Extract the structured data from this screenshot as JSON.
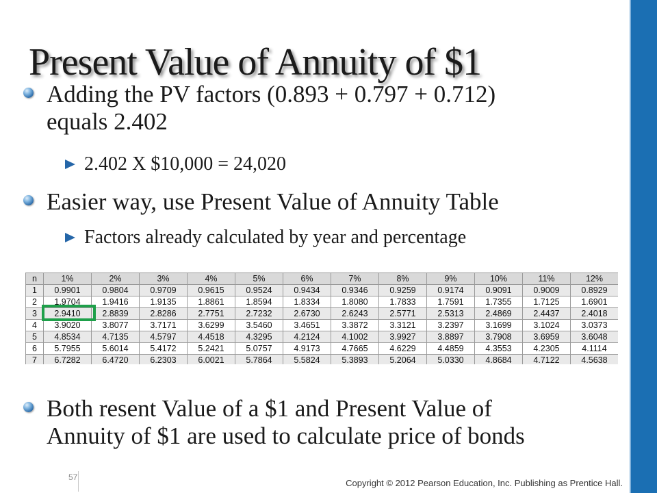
{
  "slide": {
    "title": "Present Value of Annuity of $1",
    "bullets": [
      {
        "line1": "Adding the PV factors (0.893 + 0.797 + 0.712)",
        "line2": "equals 2.402",
        "sub": [
          "2.402 X $10,000 = 24,020"
        ]
      },
      {
        "line1": "Easier way, use Present Value of Annuity Table",
        "sub": [
          "Factors already calculated by year and percentage"
        ]
      },
      {
        "line1": "Both resent Value of a $1 and Present Value of",
        "line2": "Annuity of $1 are used to calculate price of bonds"
      }
    ],
    "page_number": "57",
    "copyright": "Copyright © 2012 Pearson Education, Inc. Publishing as Prentice Hall."
  },
  "table": {
    "headers": [
      "n",
      "1%",
      "2%",
      "3%",
      "4%",
      "5%",
      "6%",
      "7%",
      "8%",
      "9%",
      "10%",
      "11%",
      "12%"
    ],
    "rows": [
      [
        "1",
        "0.9901",
        "0.9804",
        "0.9709",
        "0.9615",
        "0.9524",
        "0.9434",
        "0.9346",
        "0.9259",
        "0.9174",
        "0.9091",
        "0.9009",
        "0.8929"
      ],
      [
        "2",
        "1.9704",
        "1.9416",
        "1.9135",
        "1.8861",
        "1.8594",
        "1.8334",
        "1.8080",
        "1.7833",
        "1.7591",
        "1.7355",
        "1.7125",
        "1.6901"
      ],
      [
        "3",
        "2.9410",
        "2.8839",
        "2.8286",
        "2.7751",
        "2.7232",
        "2.6730",
        "2.6243",
        "2.5771",
        "2.5313",
        "2.4869",
        "2.4437",
        "2.4018"
      ],
      [
        "4",
        "3.9020",
        "3.8077",
        "3.7171",
        "3.6299",
        "3.5460",
        "3.4651",
        "3.3872",
        "3.3121",
        "3.2397",
        "3.1699",
        "3.1024",
        "3.0373"
      ],
      [
        "5",
        "4.8534",
        "4.7135",
        "4.5797",
        "4.4518",
        "4.3295",
        "4.2124",
        "4.1002",
        "3.9927",
        "3.8897",
        "3.7908",
        "3.6959",
        "3.6048"
      ],
      [
        "6",
        "5.7955",
        "5.6014",
        "5.4172",
        "5.2421",
        "5.0757",
        "4.9173",
        "4.7665",
        "4.6229",
        "4.4859",
        "4.3553",
        "4.2305",
        "4.1114"
      ],
      [
        "7",
        "6.7282",
        "6.4720",
        "6.2303",
        "6.0021",
        "5.7864",
        "5.5824",
        "5.3893",
        "5.2064",
        "5.0330",
        "4.8684",
        "4.7122",
        "4.5638"
      ]
    ]
  },
  "colors": {
    "accent_bar": "#1b6fb3",
    "highlight_box": "#1ea04a"
  }
}
